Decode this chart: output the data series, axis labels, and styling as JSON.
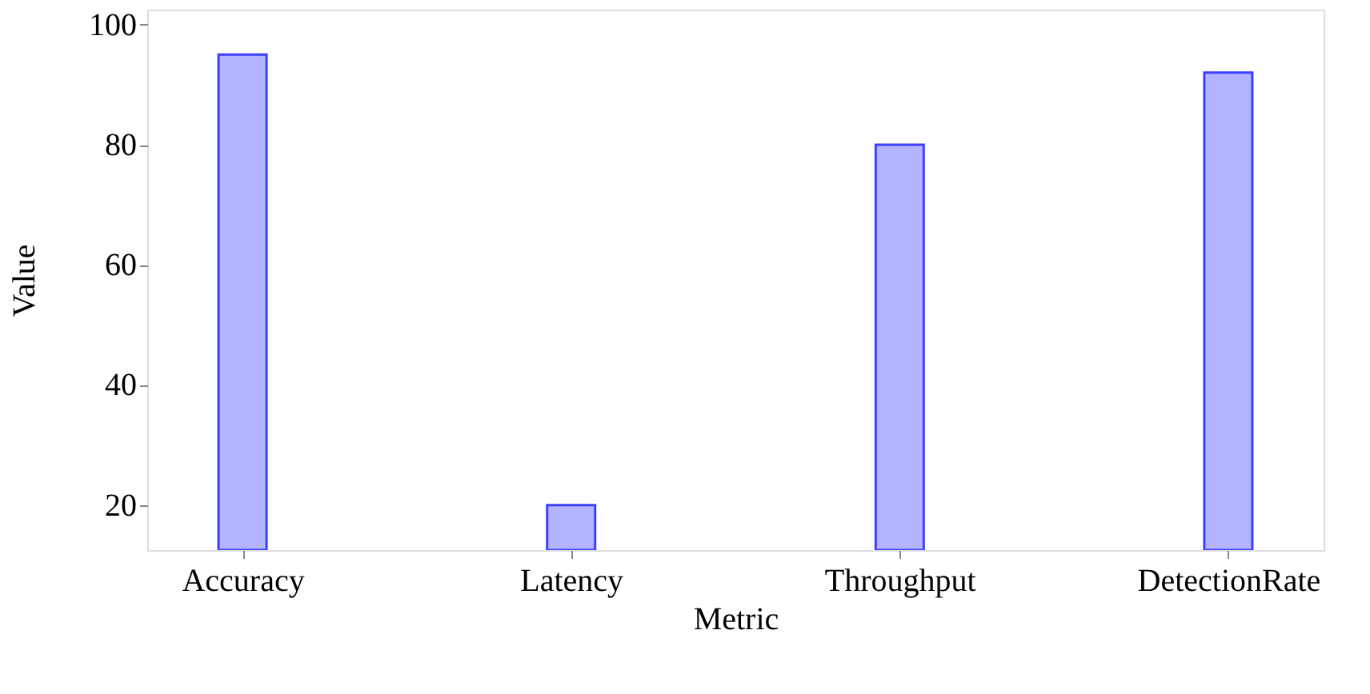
{
  "chart_data": {
    "type": "bar",
    "xlabel": "Metric",
    "ylabel": "Value",
    "categories": [
      "Accuracy",
      "Latency",
      "Throughput",
      "DetectionRate"
    ],
    "values": [
      95,
      20,
      80,
      92
    ],
    "color": "#b3b3ff",
    "ylim": [
      12.5,
      102.5
    ],
    "yticks": [
      20,
      40,
      60,
      80,
      100
    ],
    "grid": false
  }
}
